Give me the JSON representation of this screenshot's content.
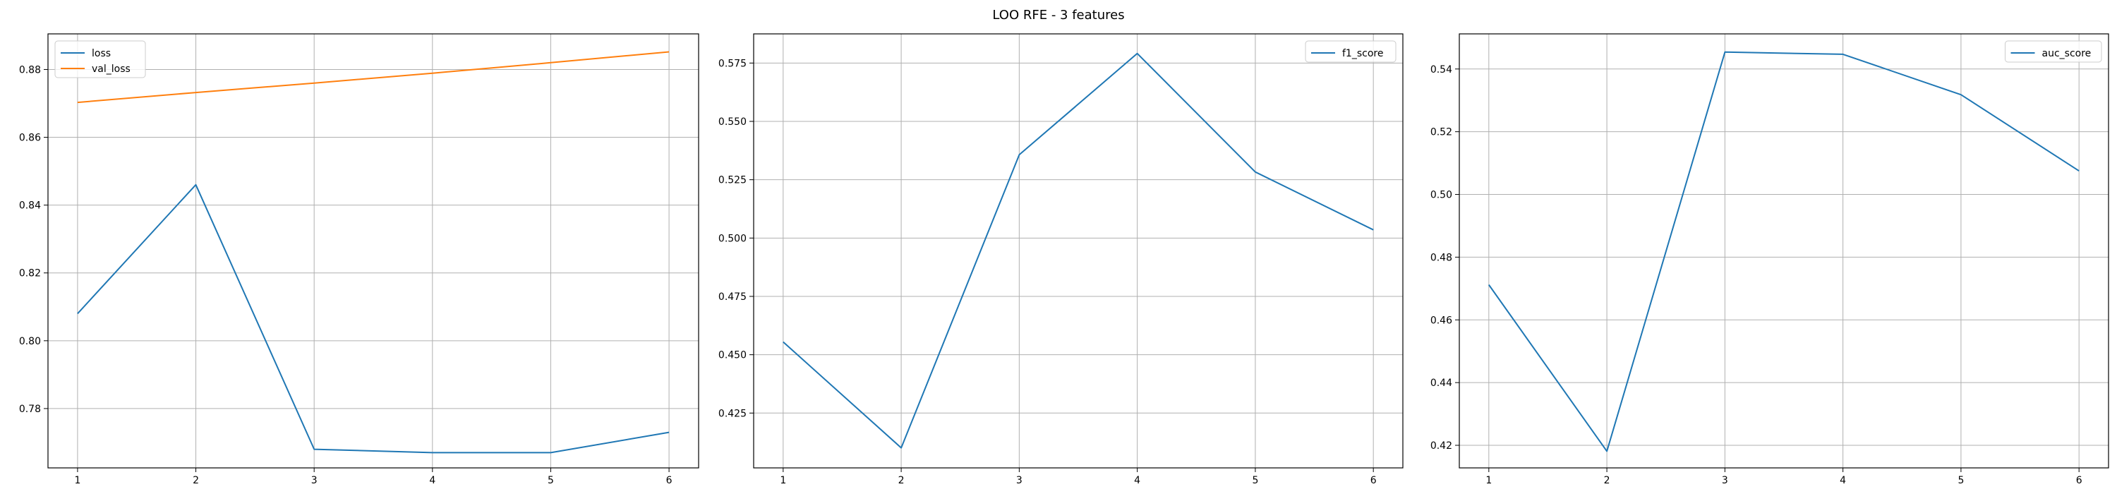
{
  "suptitle": "LOO RFE - 3 features",
  "chart_data": [
    {
      "type": "line",
      "x": [
        1,
        2,
        3,
        4,
        5,
        6
      ],
      "xlim": [
        0.75,
        6.25
      ],
      "ylim": [
        0.7625,
        0.8905
      ],
      "yticks": [
        0.78,
        0.8,
        0.82,
        0.84,
        0.86,
        0.88
      ],
      "ytick_labels": [
        "0.78",
        "0.80",
        "0.82",
        "0.84",
        "0.86",
        "0.88"
      ],
      "grid": true,
      "legend_loc": "upper left",
      "series": [
        {
          "name": "loss",
          "color": "#1f77b4",
          "values": [
            0.808,
            0.846,
            0.768,
            0.767,
            0.767,
            0.773
          ]
        },
        {
          "name": "val_loss",
          "color": "#ff7f0e",
          "values": [
            0.8703,
            0.8732,
            0.876,
            0.8789,
            0.882,
            0.8852
          ]
        }
      ]
    },
    {
      "type": "line",
      "x": [
        1,
        2,
        3,
        4,
        5,
        6
      ],
      "xlim": [
        0.75,
        6.25
      ],
      "ylim": [
        0.4015,
        0.5875
      ],
      "yticks": [
        0.425,
        0.45,
        0.475,
        0.5,
        0.525,
        0.55,
        0.575
      ],
      "ytick_labels": [
        "0.425",
        "0.450",
        "0.475",
        "0.500",
        "0.525",
        "0.550",
        "0.575"
      ],
      "grid": true,
      "legend_loc": "upper right",
      "series": [
        {
          "name": "f1_score",
          "color": "#1f77b4",
          "values": [
            0.4555,
            0.4101,
            0.5357,
            0.5791,
            0.5283,
            0.5035
          ]
        }
      ]
    },
    {
      "type": "line",
      "x": [
        1,
        2,
        3,
        4,
        5,
        6
      ],
      "xlim": [
        0.75,
        6.25
      ],
      "ylim": [
        0.4128,
        0.5512
      ],
      "yticks": [
        0.42,
        0.44,
        0.46,
        0.48,
        0.5,
        0.52,
        0.54
      ],
      "ytick_labels": [
        "0.42",
        "0.44",
        "0.46",
        "0.48",
        "0.50",
        "0.52",
        "0.54"
      ],
      "grid": true,
      "legend_loc": "upper right",
      "series": [
        {
          "name": "auc_score",
          "color": "#1f77b4",
          "values": [
            0.4712,
            0.4181,
            0.5454,
            0.5447,
            0.5318,
            0.5075
          ]
        }
      ]
    }
  ]
}
